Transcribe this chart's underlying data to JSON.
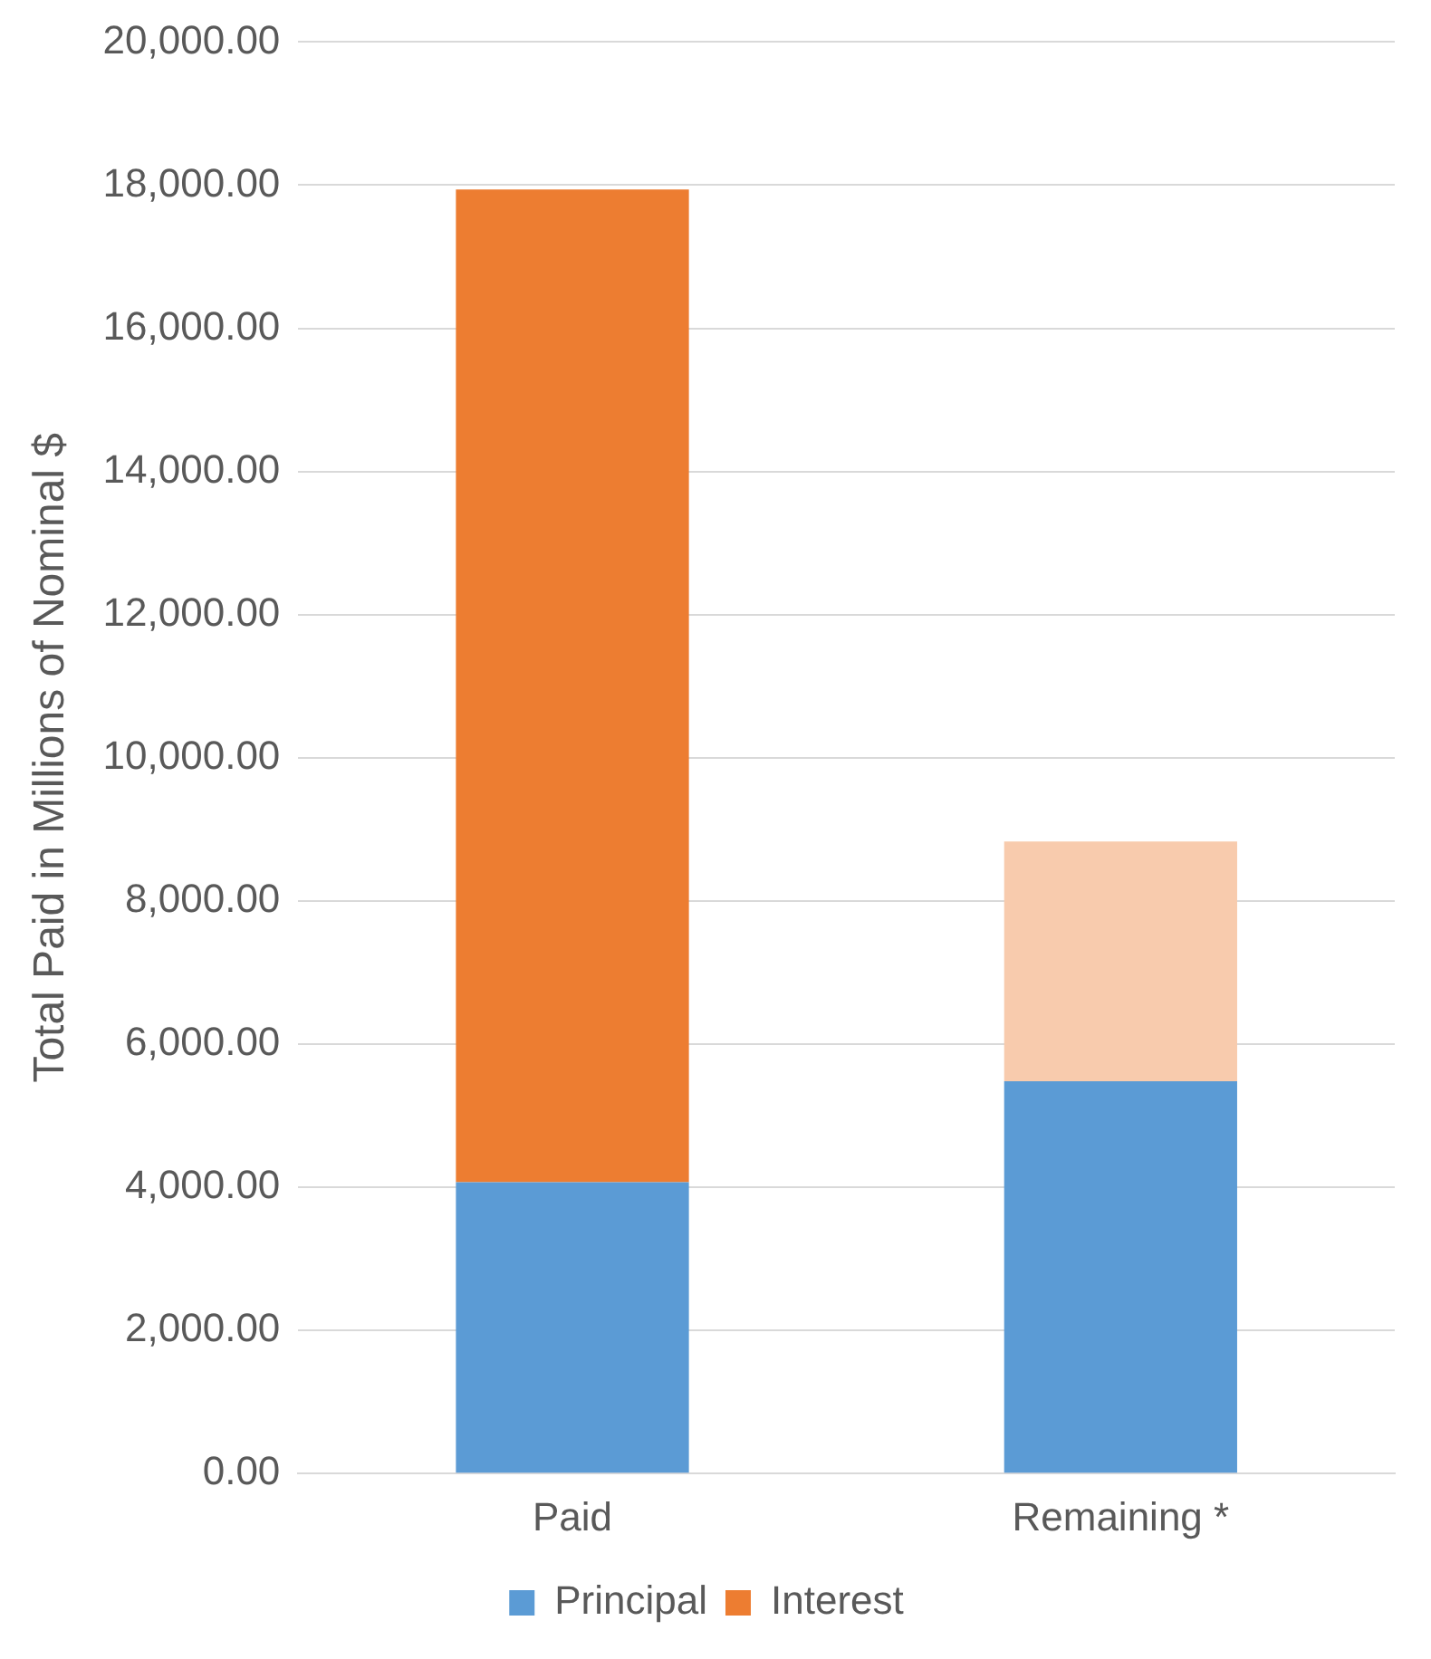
{
  "chart_data": {
    "type": "bar",
    "stacked": true,
    "ylabel": "Total Paid in Millions of Nominal $",
    "categories": [
      "Paid",
      "Remaining *"
    ],
    "series": [
      {
        "name": "Principal",
        "color": "#5b9bd5",
        "values": [
          4070,
          5480
        ]
      },
      {
        "name": "Interest",
        "color": "#ed7d31",
        "colors": [
          "#ed7d31",
          "#f8cbad"
        ],
        "values": [
          13870,
          3350
        ]
      }
    ],
    "ylim": [
      0,
      20000
    ],
    "yticks": [
      {
        "value": 0,
        "label": "0.00"
      },
      {
        "value": 2000,
        "label": "2,000.00"
      },
      {
        "value": 4000,
        "label": "4,000.00"
      },
      {
        "value": 6000,
        "label": "6,000.00"
      },
      {
        "value": 8000,
        "label": "8,000.00"
      },
      {
        "value": 10000,
        "label": "10,000.00"
      },
      {
        "value": 12000,
        "label": "12,000.00"
      },
      {
        "value": 14000,
        "label": "14,000.00"
      },
      {
        "value": 16000,
        "label": "16,000.00"
      },
      {
        "value": 18000,
        "label": "18,000.00"
      },
      {
        "value": 20000,
        "label": "20,000.00"
      }
    ],
    "grid": "y",
    "legend": "bottom"
  }
}
